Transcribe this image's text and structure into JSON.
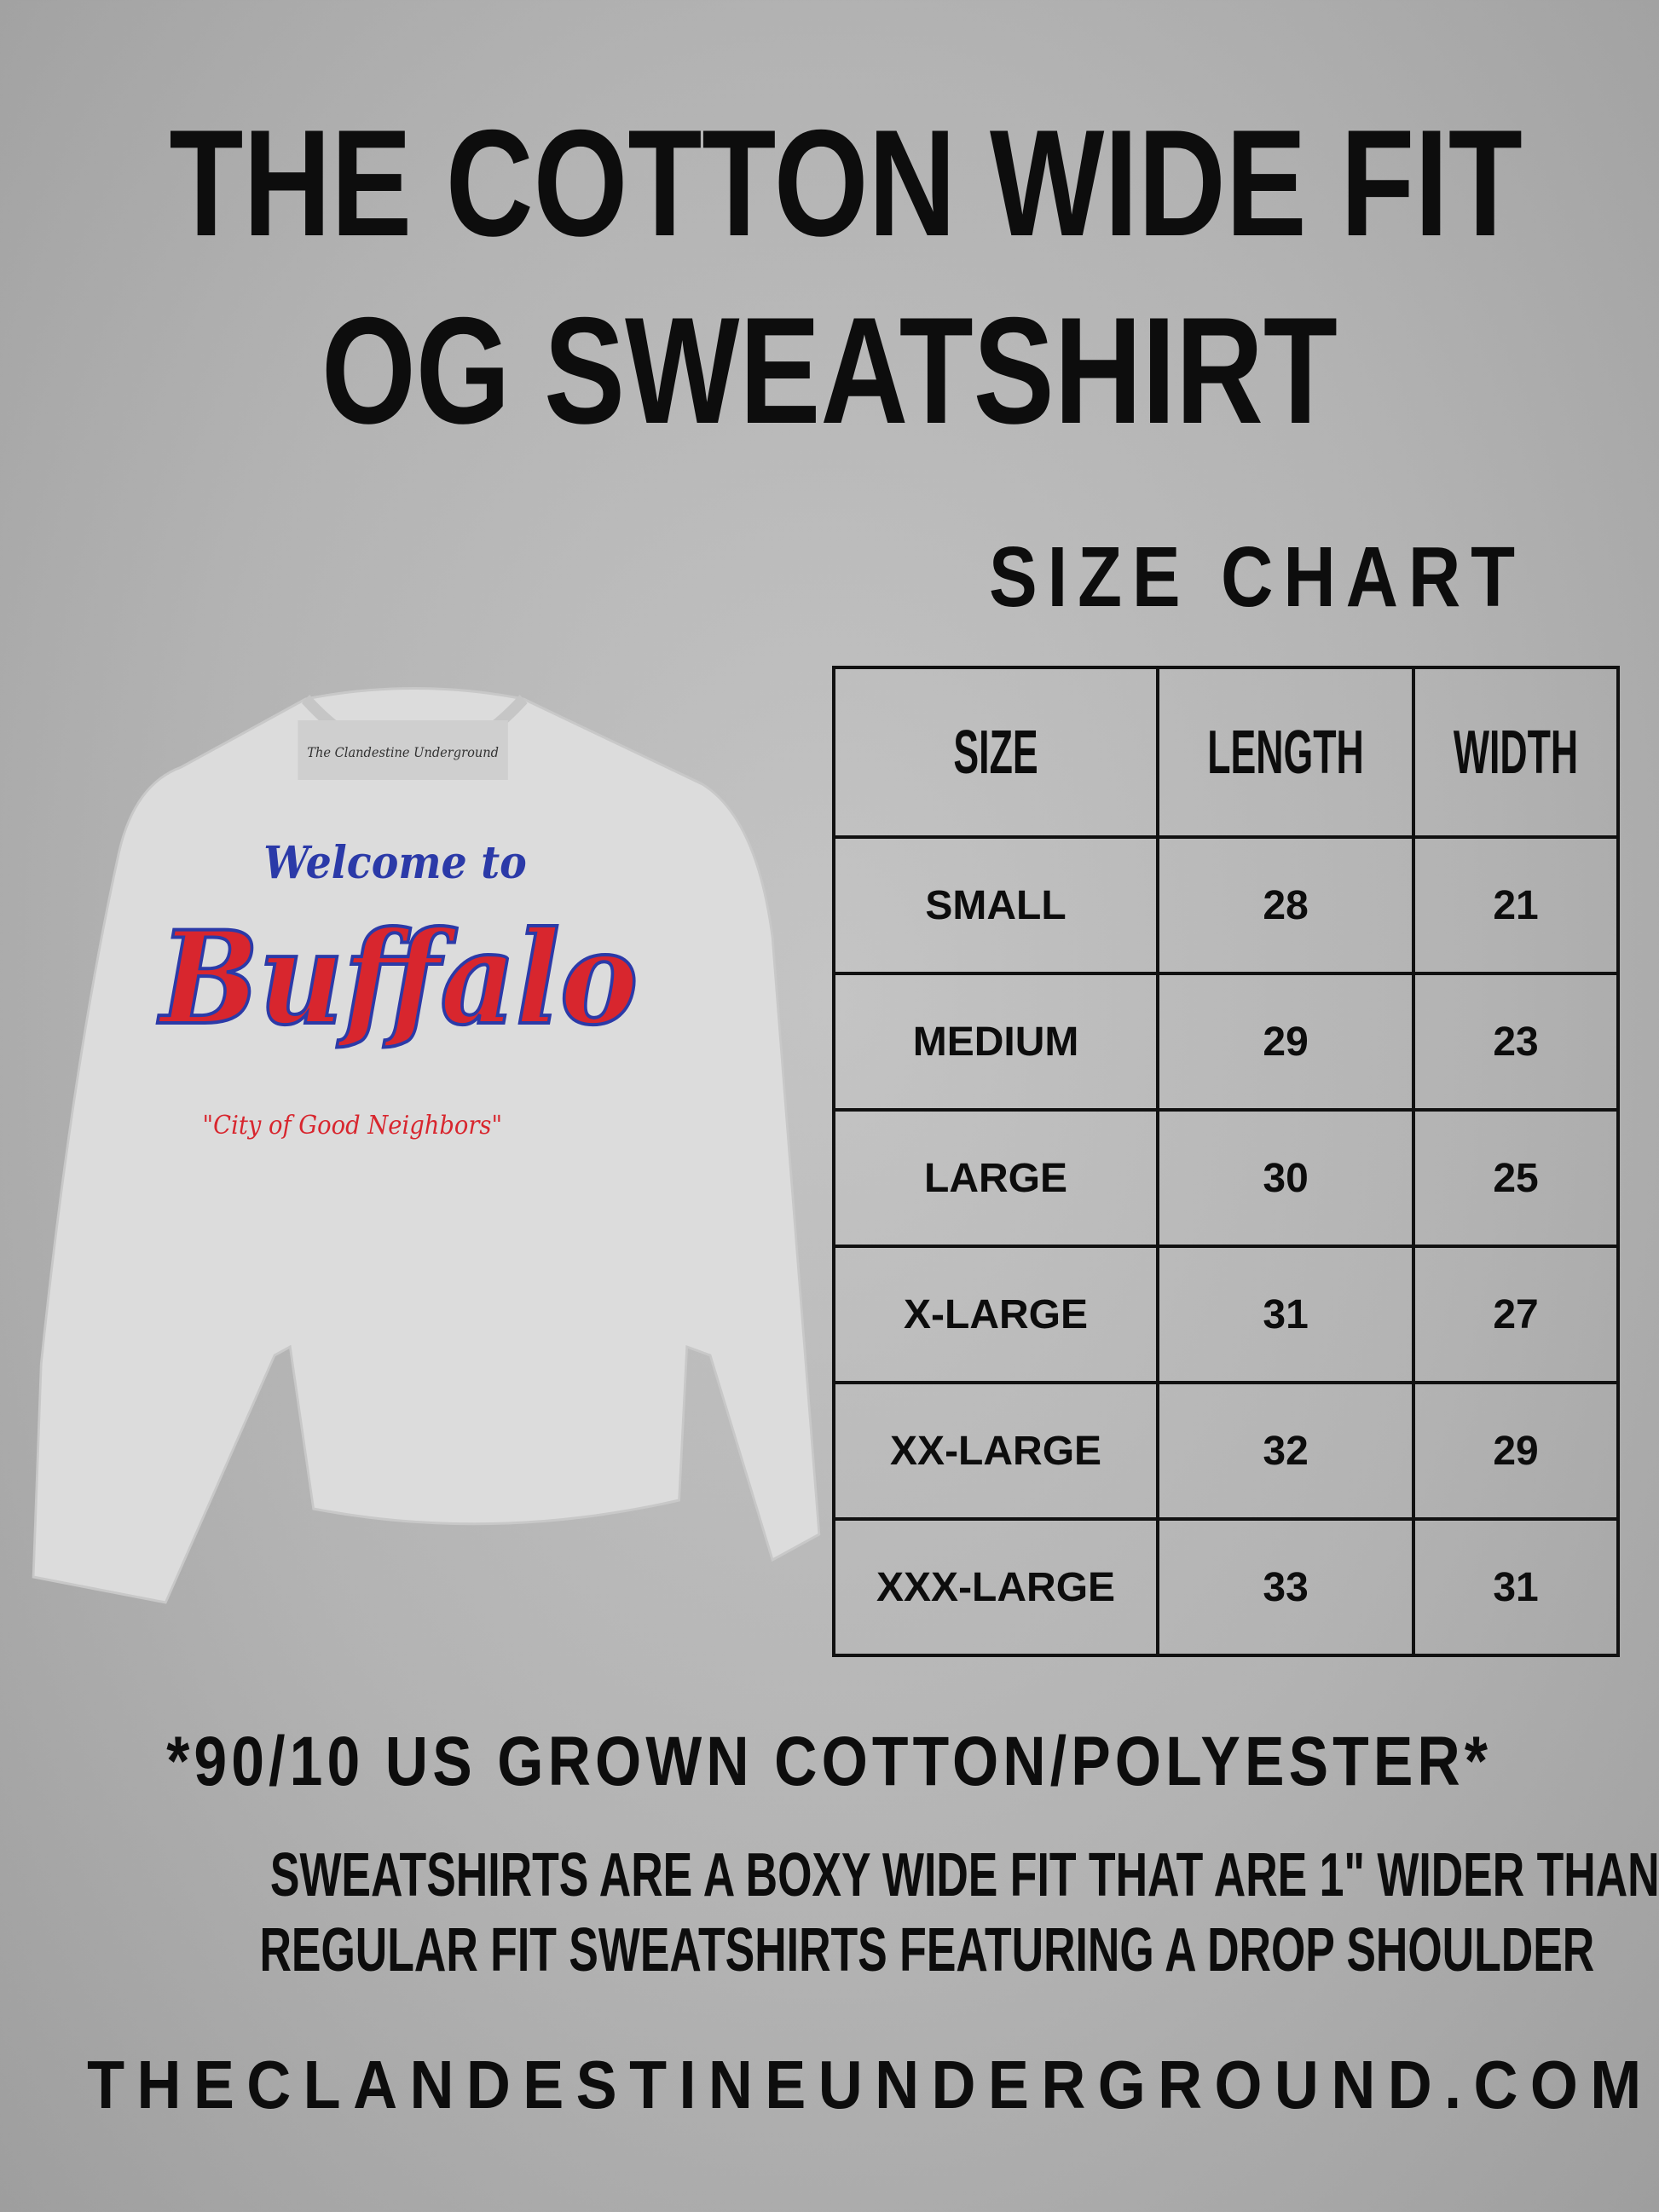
{
  "title": {
    "line1": "THE COTTON WIDE FIT",
    "line2": "OG SWEATSHIRT"
  },
  "size_chart": {
    "heading": "SIZE CHART",
    "columns": [
      "SIZE",
      "LENGTH",
      "WIDTH"
    ],
    "rows": [
      [
        "SMALL",
        "28",
        "21"
      ],
      [
        "MEDIUM",
        "29",
        "23"
      ],
      [
        "LARGE",
        "30",
        "25"
      ],
      [
        "X-LARGE",
        "31",
        "27"
      ],
      [
        "XX-LARGE",
        "32",
        "29"
      ],
      [
        "XXX-LARGE",
        "33",
        "31"
      ]
    ]
  },
  "product_image": {
    "graphic_text": [
      "Welcome to",
      "Buffalo",
      "\"City of Good Neighbors\""
    ],
    "label_text": "The Clandestine Underground",
    "colors": {
      "shirt": "#dcdcdc",
      "red": "#d8262e",
      "blue": "#2b3aa8"
    }
  },
  "material": "*90/10 US GROWN COTTON/POLYESTER*",
  "description": [
    "SWEATSHIRTS ARE A BOXY WIDE FIT THAT ARE 1\" WIDER THAN",
    "REGULAR FIT SWEATSHIRTS FEATURING A DROP SHOULDER"
  ],
  "website": "THECLANDESTINEUNDERGROUND.COM"
}
